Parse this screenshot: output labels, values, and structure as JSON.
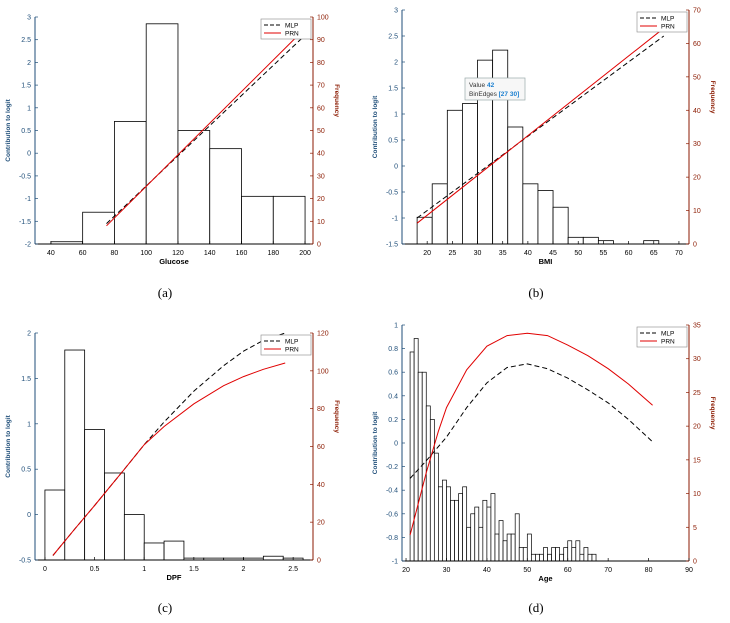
{
  "captions": [
    "(a)",
    "(b)",
    "(c)",
    "(d)"
  ],
  "colors": {
    "mlp": "#000000",
    "prn": "#e00000",
    "left_axis": "#1f4e79",
    "right_axis": "#8b1a00",
    "hist": "#000000"
  },
  "chart_data": [
    {
      "type": "bar",
      "panel": "(a)",
      "xlabel": "Glucose",
      "ylabel": "Contribution to logit",
      "y2label": "Frequency",
      "xlim": [
        30,
        205
      ],
      "ylim": [
        -2,
        3
      ],
      "y2lim": [
        0,
        100
      ],
      "xticks": [
        40,
        60,
        80,
        100,
        120,
        140,
        160,
        180,
        200
      ],
      "yticks": [
        -2,
        -1.5,
        -1,
        -0.5,
        0,
        0.5,
        1,
        1.5,
        2,
        2.5,
        3
      ],
      "y2ticks": [
        0,
        10,
        20,
        30,
        40,
        50,
        60,
        70,
        80,
        90,
        100
      ],
      "histogram": {
        "edges": [
          40,
          60,
          80,
          100,
          120,
          140,
          160,
          180,
          200
        ],
        "counts": [
          1,
          14,
          54,
          97,
          50,
          42,
          21,
          21
        ]
      },
      "legend": [
        "MLP",
        "PRN"
      ],
      "legend_position": "top-right",
      "series": [
        {
          "name": "MLP",
          "style": "dashed",
          "x": [
            75,
            200
          ],
          "y": [
            -1.55,
            2.6
          ]
        },
        {
          "name": "PRN",
          "style": "solid",
          "x": [
            75,
            200
          ],
          "y": [
            -1.6,
            2.75
          ]
        }
      ]
    },
    {
      "type": "bar",
      "panel": "(b)",
      "xlabel": "BMI",
      "ylabel": "Contribution to logit",
      "y2label": "Frequency",
      "xlim": [
        15,
        72
      ],
      "ylim": [
        -1.5,
        3
      ],
      "y2lim": [
        0,
        70
      ],
      "xticks": [
        20,
        25,
        30,
        35,
        40,
        45,
        50,
        55,
        60,
        65,
        70
      ],
      "yticks": [
        -1.5,
        -1,
        -0.5,
        0,
        0.5,
        1,
        1.5,
        2,
        2.5,
        3
      ],
      "y2ticks": [
        0,
        10,
        20,
        30,
        40,
        50,
        60,
        70
      ],
      "histogram": {
        "edges": [
          18,
          21,
          24,
          27,
          30,
          33,
          36,
          39,
          42,
          45,
          48,
          51,
          54,
          57,
          60,
          63,
          66,
          69
        ],
        "counts": [
          8,
          18,
          40,
          42,
          55,
          58,
          35,
          18,
          16,
          11,
          2,
          2,
          1,
          0,
          0,
          1,
          0
        ]
      },
      "tooltip": {
        "value_label": "Value",
        "value": "42",
        "edges_label": "BinEdges",
        "edges": "[27 30]"
      },
      "legend": [
        "MLP",
        "PRN"
      ],
      "legend_position": "top-right",
      "series": [
        {
          "name": "MLP",
          "style": "dashed",
          "x": [
            18,
            67
          ],
          "y": [
            -1.0,
            2.5
          ]
        },
        {
          "name": "PRN",
          "style": "solid",
          "x": [
            18,
            67
          ],
          "y": [
            -1.1,
            2.65
          ]
        }
      ]
    },
    {
      "type": "bar",
      "panel": "(c)",
      "xlabel": "DPF",
      "ylabel": "Contribution to logit",
      "y2label": "Frequency",
      "xlim": [
        -0.1,
        2.7
      ],
      "ylim": [
        -0.5,
        2
      ],
      "y2lim": [
        0,
        120
      ],
      "xticks": [
        0,
        0.5,
        1,
        1.5,
        2,
        2.5
      ],
      "yticks": [
        -0.5,
        0,
        0.5,
        1,
        1.5,
        2
      ],
      "y2ticks": [
        0,
        20,
        40,
        60,
        80,
        100,
        120
      ],
      "histogram": {
        "edges": [
          0,
          0.2,
          0.4,
          0.6,
          0.8,
          1.0,
          1.2,
          1.4,
          1.6,
          1.8,
          2.0,
          2.2,
          2.4,
          2.6
        ],
        "counts": [
          37,
          111,
          69,
          46,
          24,
          9,
          10,
          1,
          1,
          1,
          1,
          2,
          1
        ]
      },
      "legend": [
        "MLP",
        "PRN"
      ],
      "legend_position": "top-right",
      "series": [
        {
          "name": "MLP",
          "style": "dashed",
          "x": [
            0.08,
            0.3,
            0.5,
            0.8,
            1.0,
            1.2,
            1.5,
            1.8,
            2.0,
            2.2,
            2.42
          ],
          "y": [
            -0.45,
            -0.16,
            0.1,
            0.5,
            0.77,
            1.02,
            1.36,
            1.64,
            1.8,
            1.92,
            2.0
          ]
        },
        {
          "name": "PRN",
          "style": "solid",
          "x": [
            0.08,
            0.3,
            0.5,
            0.8,
            1.0,
            1.2,
            1.5,
            1.8,
            2.0,
            2.2,
            2.42
          ],
          "y": [
            -0.45,
            -0.16,
            0.1,
            0.5,
            0.77,
            0.97,
            1.22,
            1.42,
            1.52,
            1.6,
            1.67
          ]
        }
      ]
    },
    {
      "type": "bar",
      "panel": "(d)",
      "xlabel": "Age",
      "ylabel": "Contribution to logit",
      "y2label": "Frequency",
      "xlim": [
        19,
        90
      ],
      "ylim": [
        -1,
        1
      ],
      "y2lim": [
        0,
        35
      ],
      "xticks": [
        20,
        30,
        40,
        50,
        60,
        70,
        80,
        90
      ],
      "yticks": [
        -1,
        -0.8,
        -0.6,
        -0.4,
        -0.2,
        0,
        0.2,
        0.4,
        0.6,
        0.8,
        1
      ],
      "y2ticks": [
        0,
        5,
        10,
        15,
        20,
        25,
        30,
        35
      ],
      "histogram": {
        "edges": [
          21,
          22,
          23,
          24,
          25,
          26,
          27,
          28,
          29,
          30,
          31,
          32,
          33,
          34,
          35,
          36,
          37,
          38,
          39,
          40,
          41,
          42,
          43,
          44,
          45,
          46,
          47,
          48,
          49,
          50,
          51,
          52,
          53,
          54,
          55,
          56,
          57,
          58,
          59,
          60,
          61,
          62,
          63,
          64,
          65,
          66,
          67
        ],
        "counts": [
          31,
          33,
          28,
          28,
          23,
          21,
          16,
          11,
          12,
          11,
          9,
          9,
          10,
          11,
          5,
          7,
          8,
          5,
          9,
          8,
          10,
          4,
          6,
          3,
          4,
          4,
          7,
          2,
          2,
          4,
          1,
          1,
          1,
          2,
          1,
          2,
          2,
          1,
          2,
          3,
          2,
          3,
          1,
          2,
          1,
          1
        ]
      },
      "legend": [
        "MLP",
        "PRN"
      ],
      "legend_position": "top-right",
      "series": [
        {
          "name": "MLP",
          "style": "dashed",
          "x": [
            21,
            25,
            30,
            35,
            40,
            45,
            50,
            55,
            60,
            65,
            70,
            75,
            81
          ],
          "y": [
            -0.3,
            -0.15,
            0.05,
            0.3,
            0.51,
            0.64,
            0.67,
            0.63,
            0.55,
            0.45,
            0.34,
            0.2,
            0.01
          ]
        },
        {
          "name": "PRN",
          "style": "solid",
          "x": [
            21,
            25,
            28,
            30,
            35,
            40,
            45,
            50,
            55,
            60,
            65,
            70,
            75,
            81
          ],
          "y": [
            -0.78,
            -0.25,
            0.1,
            0.3,
            0.62,
            0.82,
            0.91,
            0.93,
            0.91,
            0.83,
            0.74,
            0.63,
            0.5,
            0.32
          ]
        }
      ]
    }
  ]
}
